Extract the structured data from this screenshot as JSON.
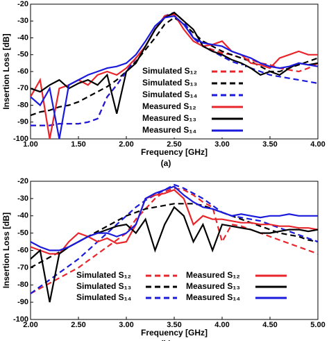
{
  "chart_data": [
    {
      "type": "line",
      "caption": "(a)",
      "xlabel": "Frequency [GHz]",
      "ylabel": "Insertion Loss [dB]",
      "xlim": [
        1.0,
        4.0
      ],
      "ylim": [
        -100,
        -20
      ],
      "xticks": [
        {
          "value": 1.0,
          "label": "1.00"
        },
        {
          "value": 1.5,
          "label": "1.50"
        },
        {
          "value": 2.0,
          "label": "2.00"
        },
        {
          "value": 2.5,
          "label": "2.50"
        },
        {
          "value": 3.0,
          "label": "3.00"
        },
        {
          "value": 3.5,
          "label": "3.50"
        },
        {
          "value": 4.0,
          "label": "4.00"
        }
      ],
      "yticks": [
        -20,
        -30,
        -40,
        -50,
        -60,
        -70,
        -80,
        -90,
        -100
      ],
      "legend": "center",
      "legend_columns": 1,
      "x": [
        1.0,
        1.1,
        1.2,
        1.3,
        1.4,
        1.5,
        1.6,
        1.7,
        1.8,
        1.9,
        2.0,
        2.1,
        2.2,
        2.3,
        2.4,
        2.5,
        2.6,
        2.7,
        2.8,
        2.9,
        3.0,
        3.1,
        3.2,
        3.3,
        3.4,
        3.5,
        3.6,
        3.7,
        3.8,
        3.9,
        4.0
      ],
      "series": [
        {
          "name": "Simulated S₁₂",
          "color": "#e8252b",
          "dashed": true,
          "values": [
            -92,
            -92,
            -92,
            -91,
            -91,
            -91,
            -90,
            -88,
            -75,
            -68,
            -60,
            -52,
            -45,
            -35,
            -27,
            -25,
            -30,
            -40,
            -45,
            -47,
            -49,
            -50,
            -52,
            -53,
            -55,
            -56,
            -58,
            -59,
            -60,
            -58,
            -55
          ]
        },
        {
          "name": "Simulated S₁₃",
          "color": "#000000",
          "dashed": true,
          "values": [
            -86,
            -84,
            -83,
            -81,
            -80,
            -78,
            -75,
            -72,
            -69,
            -65,
            -60,
            -54,
            -47,
            -40,
            -32,
            -28,
            -32,
            -37,
            -42,
            -45,
            -48,
            -50,
            -52,
            -54,
            -57,
            -60,
            -60,
            -58,
            -56,
            -54,
            -52
          ]
        },
        {
          "name": "Simulated S₁₄",
          "color": "#1a1adc",
          "dashed": true,
          "values": [
            -92,
            -92,
            -92,
            -91,
            -91,
            -91,
            -90,
            -88,
            -75,
            -68,
            -60,
            -52,
            -45,
            -35,
            -27,
            -25,
            -30,
            -40,
            -45,
            -48,
            -51,
            -54,
            -56,
            -58,
            -60,
            -62,
            -63,
            -64,
            -65,
            -66,
            -67
          ]
        },
        {
          "name": "Measured S₁₂",
          "color": "#e8252b",
          "dashed": false,
          "values": [
            -75,
            -65,
            -100,
            -70,
            -68,
            -65,
            -68,
            -62,
            -60,
            -62,
            -58,
            -52,
            -45,
            -35,
            -27,
            -26,
            -35,
            -42,
            -45,
            -44,
            -42,
            -48,
            -50,
            -55,
            -56,
            -58,
            -52,
            -50,
            -48,
            -50,
            -50
          ]
        },
        {
          "name": "Measured S₁₃",
          "color": "#000000",
          "dashed": false,
          "values": [
            -70,
            -72,
            -68,
            -65,
            -70,
            -67,
            -65,
            -68,
            -62,
            -85,
            -60,
            -55,
            -45,
            -35,
            -28,
            -25,
            -30,
            -35,
            -45,
            -48,
            -50,
            -53,
            -55,
            -58,
            -62,
            -60,
            -62,
            -58,
            -55,
            -56,
            -55
          ]
        },
        {
          "name": "Measured S₁₄",
          "color": "#1a1adc",
          "dashed": false,
          "values": [
            -75,
            -80,
            -70,
            -100,
            -68,
            -65,
            -62,
            -60,
            -58,
            -57,
            -55,
            -50,
            -42,
            -33,
            -28,
            -27,
            -32,
            -40,
            -43,
            -44,
            -45,
            -48,
            -50,
            -52,
            -55,
            -57,
            -58,
            -57,
            -55,
            -56,
            -57
          ]
        }
      ]
    },
    {
      "type": "line",
      "caption": "(b)",
      "xlabel": "Frequency [GHz]",
      "ylabel": "Insertion Loss [dB]",
      "xlim": [
        2.0,
        5.0
      ],
      "ylim": [
        -100,
        -20
      ],
      "xticks": [
        {
          "value": 2.0,
          "label": "2.00"
        },
        {
          "value": 2.5,
          "label": "2.50"
        },
        {
          "value": 3.0,
          "label": "3.00"
        },
        {
          "value": 3.5,
          "label": "3.50"
        },
        {
          "value": 4.0,
          "label": "4.00"
        },
        {
          "value": 4.5,
          "label": "4.50"
        },
        {
          "value": 5.0,
          "label": "5.00"
        }
      ],
      "yticks": [
        -20,
        -30,
        -40,
        -50,
        -60,
        -70,
        -80,
        -90,
        -100
      ],
      "legend": "lower center",
      "legend_columns": 2,
      "x": [
        2.0,
        2.1,
        2.2,
        2.3,
        2.4,
        2.5,
        2.6,
        2.7,
        2.8,
        2.9,
        3.0,
        3.1,
        3.2,
        3.3,
        3.4,
        3.5,
        3.6,
        3.7,
        3.8,
        3.9,
        4.0,
        4.1,
        4.2,
        4.3,
        4.4,
        4.5,
        4.6,
        4.7,
        4.8,
        4.9,
        5.0
      ],
      "series": [
        {
          "name": "Simulated S₁₂",
          "color": "#e8252b",
          "dashed": true,
          "values": [
            -85,
            -82,
            -79,
            -76,
            -73,
            -70,
            -66,
            -62,
            -58,
            -54,
            -50,
            -42,
            -36,
            -30,
            -26,
            -24,
            -25,
            -28,
            -32,
            -35,
            -55,
            -45,
            -46,
            -48,
            -50,
            -52,
            -54,
            -56,
            -58,
            -60,
            -62
          ]
        },
        {
          "name": "Simulated S₁₃",
          "color": "#000000",
          "dashed": true,
          "values": [
            -70,
            -67,
            -64,
            -61,
            -58,
            -55,
            -52,
            -49,
            -46,
            -43,
            -40,
            -38,
            -36,
            -35,
            -34,
            -33,
            -33,
            -33,
            -34,
            -36,
            -38,
            -40,
            -42,
            -44,
            -46,
            -48,
            -50,
            -51,
            -52,
            -54,
            -55
          ]
        },
        {
          "name": "Simulated S₁₄",
          "color": "#1a1adc",
          "dashed": true,
          "values": [
            -85,
            -81,
            -77,
            -73,
            -69,
            -65,
            -60,
            -55,
            -50,
            -45,
            -40,
            -35,
            -31,
            -28,
            -25,
            -22,
            -24,
            -27,
            -30,
            -34,
            -38,
            -40,
            -41,
            -42,
            -43,
            -45,
            -47,
            -49,
            -51,
            -53,
            -55
          ]
        },
        {
          "name": "Measured S₁₂",
          "color": "#e8252b",
          "dashed": false,
          "values": [
            -58,
            -60,
            -62,
            -62,
            -55,
            -50,
            -52,
            -55,
            -53,
            -56,
            -55,
            -45,
            -30,
            -28,
            -27,
            -25,
            -30,
            -45,
            -40,
            -42,
            -42,
            -43,
            -44,
            -44,
            -45,
            -45,
            -46,
            -46,
            -47,
            -47,
            -48
          ]
        },
        {
          "name": "Measured S₁₃",
          "color": "#000000",
          "dashed": false,
          "values": [
            -65,
            -60,
            -90,
            -62,
            -58,
            -55,
            -52,
            -50,
            -48,
            -46,
            -45,
            -50,
            -42,
            -60,
            -45,
            -35,
            -40,
            -55,
            -45,
            -60,
            -45,
            -46,
            -47,
            -48,
            -50,
            -50,
            -49,
            -48,
            -48,
            -49,
            -48
          ]
        },
        {
          "name": "Measured S₁₄",
          "color": "#1a1adc",
          "dashed": false,
          "values": [
            -55,
            -58,
            -60,
            -60,
            -58,
            -55,
            -52,
            -50,
            -50,
            -52,
            -50,
            -45,
            -30,
            -27,
            -25,
            -23,
            -28,
            -32,
            -35,
            -36,
            -38,
            -40,
            -39,
            -40,
            -41,
            -40,
            -40,
            -39,
            -40,
            -40,
            -40
          ]
        }
      ]
    }
  ]
}
